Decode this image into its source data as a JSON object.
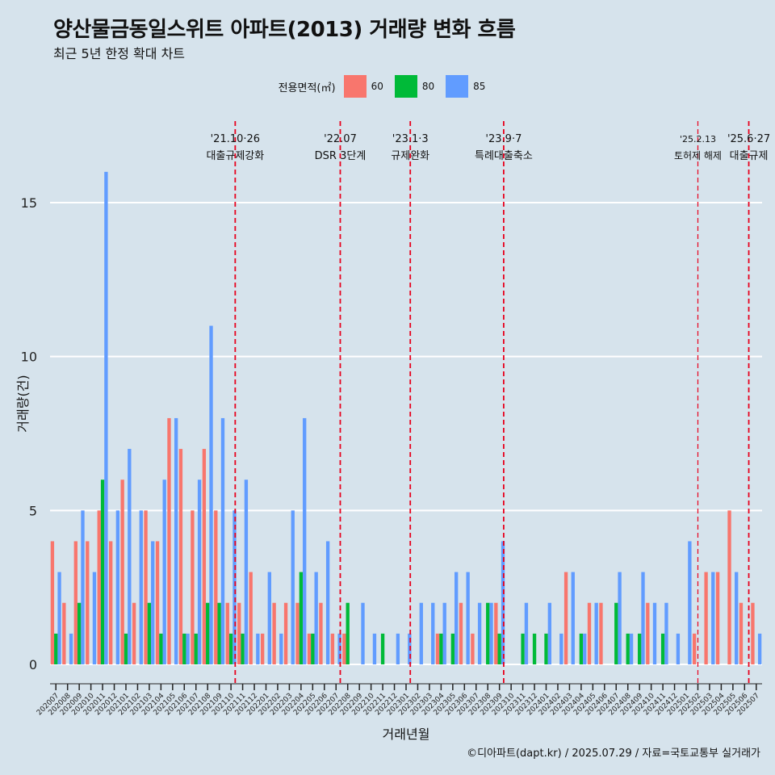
{
  "title": "양산물금동일스위트 아파트(2013) 거래량 변화 흐름",
  "subtitle": "최근 5년 한정 확대 차트",
  "caption": "©디아파트(dapt.kr) / 2025.07.29 / 자료=국토교통부 실거래가",
  "colors": {
    "background": "#d6e3ec",
    "grid": "#ffffff",
    "series_60": "#f8766d",
    "series_80": "#00ba38",
    "series_85": "#619cff",
    "event_line": "#e8001c"
  },
  "chart_data": {
    "type": "bar",
    "xlabel": "거래년월",
    "ylabel": "거래량(건)",
    "ylim": [
      0,
      16
    ],
    "yticks": [
      0,
      5,
      10,
      15
    ],
    "legend_title": "전용면적(㎡)",
    "legend_position": "top",
    "grid": true,
    "categories": [
      "202007",
      "202008",
      "202009",
      "202010",
      "202011",
      "202012",
      "202101",
      "202102",
      "202103",
      "202104",
      "202105",
      "202106",
      "202107",
      "202108",
      "202109",
      "202110",
      "202111",
      "202112",
      "202201",
      "202202",
      "202203",
      "202204",
      "202205",
      "202206",
      "202207",
      "202208",
      "202209",
      "202210",
      "202211",
      "202212",
      "202301",
      "202302",
      "202303",
      "202304",
      "202305",
      "202306",
      "202307",
      "202308",
      "202309",
      "202310",
      "202311",
      "202312",
      "202401",
      "202402",
      "202403",
      "202404",
      "202405",
      "202406",
      "202407",
      "202408",
      "202409",
      "202410",
      "202411",
      "202412",
      "202501",
      "202502",
      "202503",
      "202504",
      "202505",
      "202506",
      "202507"
    ],
    "series": [
      {
        "name": "60",
        "color": "#f8766d",
        "values": [
          4,
          2,
          4,
          4,
          5,
          4,
          6,
          2,
          5,
          4,
          8,
          7,
          5,
          7,
          5,
          2,
          2,
          3,
          1,
          2,
          2,
          2,
          1,
          2,
          1,
          1,
          0,
          0,
          0,
          0,
          0,
          0,
          0,
          1,
          0,
          2,
          1,
          0,
          2,
          0,
          0,
          0,
          0,
          0,
          3,
          0,
          2,
          2,
          0,
          0,
          0,
          2,
          0,
          0,
          0,
          1,
          3,
          3,
          5,
          2,
          2
        ]
      },
      {
        "name": "80",
        "color": "#00ba38",
        "values": [
          1,
          0,
          2,
          0,
          6,
          0,
          1,
          0,
          2,
          1,
          0,
          1,
          1,
          2,
          2,
          1,
          1,
          0,
          0,
          0,
          0,
          3,
          1,
          0,
          0,
          2,
          0,
          0,
          1,
          0,
          0,
          0,
          0,
          1,
          1,
          0,
          0,
          2,
          1,
          0,
          1,
          1,
          1,
          0,
          0,
          1,
          0,
          0,
          2,
          1,
          1,
          0,
          1,
          0,
          0,
          0,
          0,
          0,
          0,
          0,
          0
        ]
      },
      {
        "name": "85",
        "color": "#619cff",
        "values": [
          3,
          1,
          5,
          3,
          16,
          5,
          7,
          5,
          4,
          6,
          8,
          1,
          6,
          11,
          8,
          5,
          6,
          1,
          3,
          1,
          5,
          8,
          3,
          4,
          1,
          0,
          2,
          1,
          0,
          1,
          1,
          2,
          2,
          2,
          3,
          3,
          2,
          2,
          4,
          0,
          2,
          0,
          2,
          1,
          3,
          1,
          2,
          0,
          3,
          1,
          3,
          2,
          2,
          1,
          4,
          0,
          3,
          0,
          3,
          0,
          1
        ]
      }
    ],
    "events": [
      {
        "at": "202110",
        "date": "'21.10·26",
        "label": "대출규제강화"
      },
      {
        "at": "202207",
        "date": "'22.07",
        "label": "DSR 3단계"
      },
      {
        "at": "202301",
        "date": "'23.1·3",
        "label": "규제완화"
      },
      {
        "at": "202309",
        "date": "'23.9·7",
        "label": "특례대출축소"
      },
      {
        "at": "202502",
        "date": "'25.2.13",
        "label": "토허제 해제"
      },
      {
        "at": "202506",
        "date": "'25.6·27",
        "label": "대출규제"
      }
    ]
  }
}
